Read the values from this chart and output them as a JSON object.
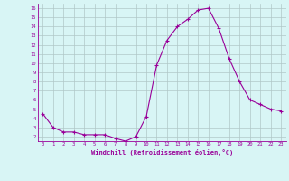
{
  "x": [
    0,
    1,
    2,
    3,
    4,
    5,
    6,
    7,
    8,
    9,
    10,
    11,
    12,
    13,
    14,
    15,
    16,
    17,
    18,
    19,
    20,
    21,
    22,
    23
  ],
  "y": [
    4.5,
    3.0,
    2.5,
    2.5,
    2.2,
    2.2,
    2.2,
    1.8,
    1.5,
    2.0,
    4.2,
    9.8,
    12.5,
    14.0,
    14.8,
    15.8,
    16.0,
    13.8,
    10.5,
    8.0,
    6.0,
    5.5,
    5.0,
    4.8
  ],
  "line_color": "#990099",
  "marker": "+",
  "bg_color": "#d8f5f5",
  "grid_color": "#b0c8c8",
  "xlabel": "Windchill (Refroidissement éolien,°C)",
  "ylabel_ticks": [
    2,
    3,
    4,
    5,
    6,
    7,
    8,
    9,
    10,
    11,
    12,
    13,
    14,
    15,
    16
  ],
  "xlim": [
    -0.5,
    23.5
  ],
  "ylim": [
    1.5,
    16.5
  ],
  "tick_color": "#990099",
  "label_color": "#990099"
}
